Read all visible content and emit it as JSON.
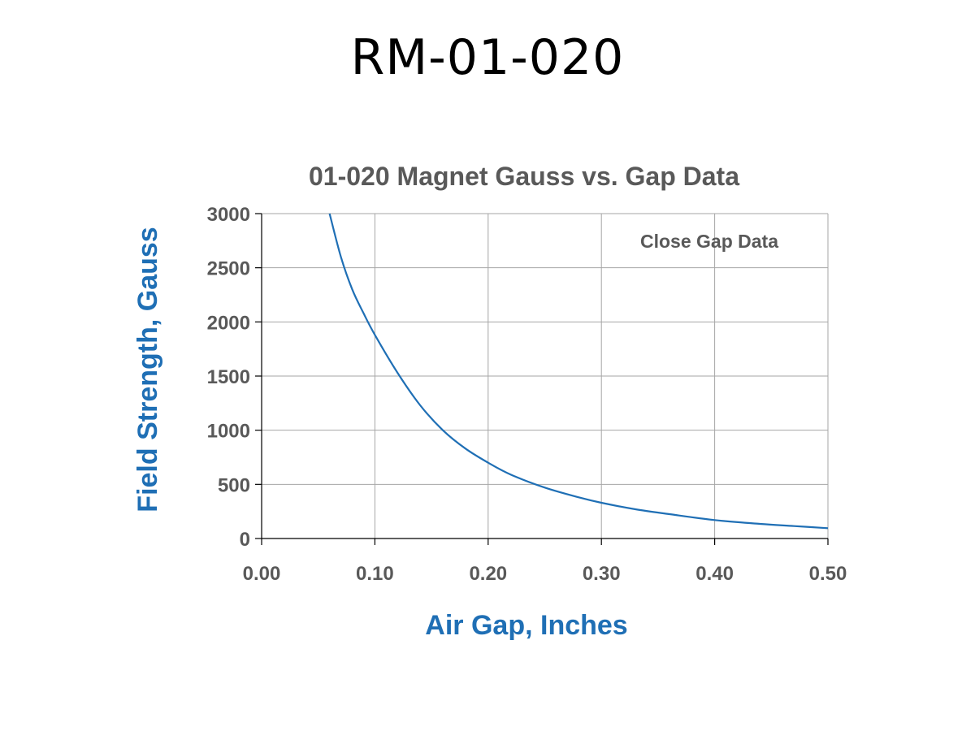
{
  "page": {
    "title": "RM-01-020"
  },
  "chart_data": {
    "type": "line",
    "title": "01-020 Magnet Gauss vs. Gap Data",
    "xlabel": "Air Gap, Inches",
    "ylabel": "Field Strength, Gauss",
    "annotation": "Close Gap Data",
    "xlim": [
      0,
      0.5
    ],
    "ylim": [
      0,
      3000
    ],
    "x_ticks": [
      0,
      0.1,
      0.2,
      0.3,
      0.4,
      0.5
    ],
    "x_tick_labels": [
      "0.00",
      "0.10",
      "0.20",
      "0.30",
      "0.40",
      "0.50"
    ],
    "y_ticks": [
      0,
      500,
      1000,
      1500,
      2000,
      2500,
      3000
    ],
    "y_tick_labels": [
      "0",
      "500",
      "1000",
      "1500",
      "2000",
      "2500",
      "3000"
    ],
    "grid": true,
    "legend": "none",
    "colors": {
      "series": "#1F6FB5",
      "axis_label": "#1F6FB5",
      "text": "#595959"
    },
    "series": [
      {
        "x": [
          0.06,
          0.07,
          0.08,
          0.09,
          0.1,
          0.12,
          0.14,
          0.16,
          0.18,
          0.2,
          0.22,
          0.25,
          0.28,
          0.3,
          0.33,
          0.36,
          0.4,
          0.44,
          0.47,
          0.5
        ],
        "values": [
          3000,
          2600,
          2300,
          2080,
          1880,
          1530,
          1230,
          1000,
          830,
          700,
          590,
          470,
          380,
          330,
          270,
          225,
          170,
          135,
          115,
          95
        ]
      }
    ]
  }
}
